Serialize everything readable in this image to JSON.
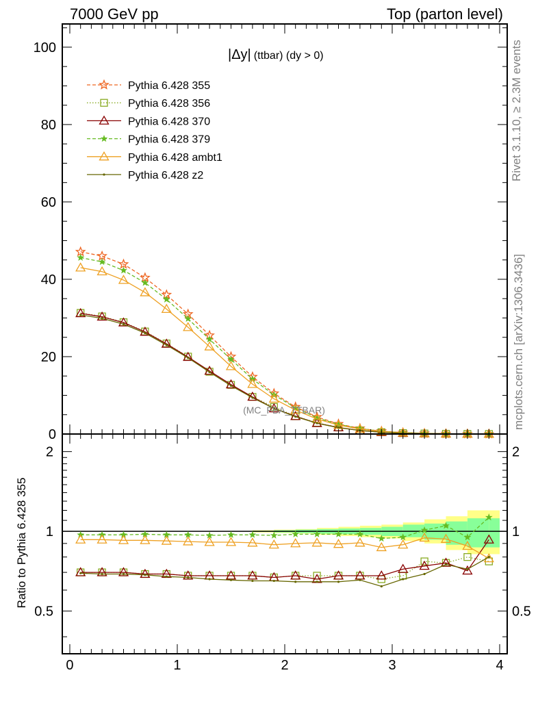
{
  "header": {
    "left": "7000 GeV pp",
    "right": "Top (parton level)"
  },
  "side_labels": {
    "rivet": "Rivet 3.1.10, ≥ 2.3M events",
    "mcplots": "mcplots.cern.ch [arXiv:1306.3436]"
  },
  "chart_data": [
    {
      "type": "line",
      "title": "|Δy| (ttbar) (dy > 0)",
      "title_main": "|Δy|",
      "title_rest": "(ttbar) (dy > 0)",
      "watermark": "(MC_FBA_TTBAR)",
      "ylim": [
        0,
        106
      ],
      "xlim": [
        -0.07,
        4.07
      ],
      "yticks": [
        0,
        20,
        40,
        60,
        80,
        100
      ],
      "x": [
        0.1,
        0.3,
        0.5,
        0.7,
        0.9,
        1.1,
        1.3,
        1.5,
        1.7,
        1.9,
        2.1,
        2.3,
        2.5,
        2.7,
        2.9,
        3.1,
        3.3,
        3.5,
        3.7,
        3.9
      ],
      "series": [
        {
          "name": "Pythia 6.428 355",
          "color": "#ee6622",
          "dash": "5,3",
          "marker": "star",
          "values": [
            47.1,
            46.0,
            43.9,
            40.4,
            36.0,
            31.0,
            25.5,
            20.0,
            14.8,
            10.5,
            7.0,
            4.4,
            2.6,
            1.45,
            0.75,
            0.37,
            0.17,
            0.08,
            0.035,
            0.015
          ]
        },
        {
          "name": "Pythia 6.428 356",
          "color": "#88aa22",
          "dash": "1.5,2.5",
          "marker": "square",
          "values": [
            31.3,
            30.4,
            28.9,
            26.5,
            23.4,
            20.0,
            16.1,
            12.7,
            9.6,
            7.0,
            4.6,
            2.9,
            1.7,
            0.9,
            0.47,
            0.25,
            0.13,
            0.06,
            0.028,
            0.012
          ]
        },
        {
          "name": "Pythia 6.428 370",
          "color": "#880000",
          "dash": "",
          "marker": "triangle",
          "values": [
            31.2,
            30.3,
            28.8,
            26.4,
            23.3,
            19.9,
            16.3,
            12.8,
            9.6,
            6.6,
            4.6,
            2.8,
            1.7,
            0.9,
            0.47,
            0.25,
            0.13,
            0.06,
            0.025,
            0.014
          ]
        },
        {
          "name": "Pythia 6.428 379",
          "color": "#66bb22",
          "dash": "5,3",
          "marker": "smallstar",
          "values": [
            45.6,
            44.5,
            42.3,
            39.1,
            34.8,
            29.8,
            24.5,
            19.3,
            14.2,
            10.1,
            6.8,
            4.2,
            2.5,
            1.4,
            0.7,
            0.35,
            0.17,
            0.08,
            0.033,
            0.017
          ]
        },
        {
          "name": "Pythia 6.428 ambt1",
          "color": "#eea022",
          "dash": "",
          "marker": "triangle",
          "values": [
            43.0,
            42.0,
            39.8,
            36.6,
            32.3,
            27.6,
            22.6,
            17.5,
            12.9,
            9.1,
            6.2,
            3.9,
            2.3,
            1.3,
            0.65,
            0.33,
            0.16,
            0.075,
            0.03,
            0.012
          ]
        },
        {
          "name": "Pythia 6.428 z2",
          "color": "#666600",
          "dash": "",
          "marker": "dot",
          "values": [
            30.8,
            29.9,
            28.4,
            26.1,
            23.0,
            19.7,
            16.0,
            12.5,
            9.4,
            6.6,
            4.5,
            2.8,
            1.65,
            0.9,
            0.45,
            0.23,
            0.12,
            0.055,
            0.024,
            0.01
          ]
        }
      ]
    },
    {
      "type": "line",
      "ylabel": "Ratio to Pythia 6.428 355",
      "ylim": [
        0.345,
        2.33
      ],
      "yticks": [
        0.5,
        1,
        2
      ],
      "yticklabels": [
        "0.5",
        "1",
        "2"
      ],
      "xticks": [
        0,
        1,
        2,
        3,
        4
      ],
      "xticklabels": [
        "0",
        "1",
        "2",
        "3",
        "4"
      ],
      "reference": 1,
      "band_x": [
        [
          1.7,
          1.9
        ],
        [
          1.9,
          2.1
        ],
        [
          2.1,
          2.3
        ],
        [
          2.3,
          2.5
        ],
        [
          2.5,
          2.7
        ],
        [
          2.7,
          2.9
        ],
        [
          2.9,
          3.1
        ],
        [
          3.1,
          3.3
        ],
        [
          3.3,
          3.5
        ],
        [
          3.5,
          3.7
        ],
        [
          3.7,
          3.9
        ],
        [
          3.9,
          4.0
        ]
      ],
      "band_inner": [
        [
          0.995,
          1.005
        ],
        [
          0.99,
          1.01
        ],
        [
          0.985,
          1.015
        ],
        [
          0.98,
          1.02
        ],
        [
          0.975,
          1.025
        ],
        [
          0.97,
          1.03
        ],
        [
          0.96,
          1.04
        ],
        [
          0.95,
          1.06
        ],
        [
          0.93,
          1.07
        ],
        [
          0.89,
          1.09
        ],
        [
          0.87,
          1.12
        ],
        [
          0.87,
          1.12
        ]
      ],
      "band_outer": [
        [
          0.99,
          1.01
        ],
        [
          0.985,
          1.015
        ],
        [
          0.98,
          1.02
        ],
        [
          0.97,
          1.03
        ],
        [
          0.96,
          1.04
        ],
        [
          0.95,
          1.05
        ],
        [
          0.94,
          1.06
        ],
        [
          0.92,
          1.08
        ],
        [
          0.9,
          1.11
        ],
        [
          0.85,
          1.14
        ],
        [
          0.82,
          1.2
        ],
        [
          0.82,
          1.2
        ]
      ],
      "x": [
        0.1,
        0.3,
        0.5,
        0.7,
        0.9,
        1.1,
        1.3,
        1.5,
        1.7,
        1.9,
        2.1,
        2.3,
        2.5,
        2.7,
        2.9,
        3.1,
        3.3,
        3.5,
        3.7,
        3.9
      ],
      "series": [
        {
          "name": "Pythia 6.428 356",
          "values": [
            0.7,
            0.7,
            0.7,
            0.69,
            0.69,
            0.68,
            0.68,
            0.68,
            0.68,
            0.67,
            0.68,
            0.68,
            0.68,
            0.68,
            0.66,
            0.68,
            0.77,
            0.76,
            0.8,
            0.77
          ]
        },
        {
          "name": "Pythia 6.428 370",
          "values": [
            0.7,
            0.7,
            0.7,
            0.69,
            0.69,
            0.68,
            0.68,
            0.68,
            0.68,
            0.67,
            0.68,
            0.66,
            0.68,
            0.68,
            0.68,
            0.72,
            0.74,
            0.76,
            0.71,
            0.93
          ]
        },
        {
          "name": "Pythia 6.428 379",
          "values": [
            0.97,
            0.97,
            0.97,
            0.975,
            0.97,
            0.97,
            0.965,
            0.97,
            0.97,
            0.965,
            0.975,
            0.975,
            0.975,
            0.975,
            0.94,
            0.95,
            1.01,
            1.05,
            0.95,
            1.13
          ]
        },
        {
          "name": "Pythia 6.428 ambt1",
          "values": [
            0.93,
            0.93,
            0.925,
            0.925,
            0.92,
            0.915,
            0.91,
            0.91,
            0.905,
            0.89,
            0.9,
            0.905,
            0.895,
            0.905,
            0.87,
            0.89,
            0.945,
            0.935,
            0.88,
            0.79
          ]
        },
        {
          "name": "Pythia 6.428 z2",
          "values": [
            0.695,
            0.69,
            0.69,
            0.685,
            0.675,
            0.67,
            0.66,
            0.655,
            0.65,
            0.65,
            0.645,
            0.645,
            0.645,
            0.655,
            0.62,
            0.66,
            0.69,
            0.75,
            0.72,
            0.8
          ]
        }
      ]
    }
  ]
}
